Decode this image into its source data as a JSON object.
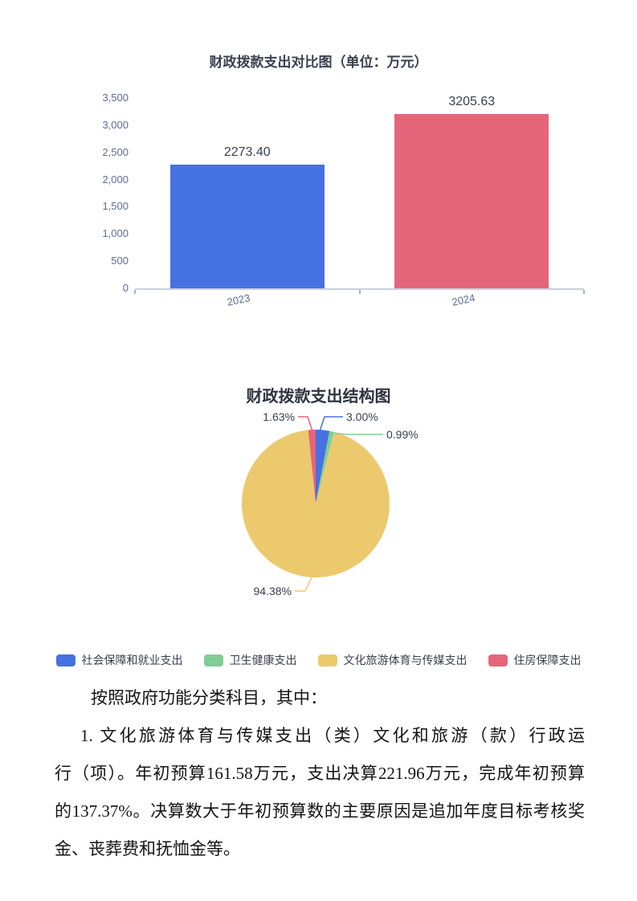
{
  "chart_data": [
    {
      "type": "bar",
      "title": "财政拨款支出对比图（单位：万元）",
      "categories": [
        "2023",
        "2024"
      ],
      "values": [
        2273.4,
        3205.63
      ],
      "value_labels": [
        "2273.40",
        "3205.63"
      ],
      "bar_colors": [
        "#4671e1",
        "#e5667a"
      ],
      "ylabel": "",
      "xlabel": "",
      "ylim": [
        0,
        3500
      ],
      "ytick_step": 500,
      "yticks": [
        "3,500",
        "3,000",
        "2,500",
        "2,000",
        "1,500",
        "1,000",
        "500",
        "0"
      ],
      "grid": false,
      "legend_position": "none"
    },
    {
      "type": "pie",
      "title": "财政拨款支出结构图",
      "slices": [
        {
          "label": "社会保障和就业支出",
          "value": 3.0,
          "pct_label": "3.00%",
          "color": "#4671e1"
        },
        {
          "label": "卫生健康支出",
          "value": 0.99,
          "pct_label": "0.99%",
          "color": "#7fce96"
        },
        {
          "label": "文化旅游体育与传媒支出",
          "value": 94.38,
          "pct_label": "94.38%",
          "color": "#ecc96d"
        },
        {
          "label": "住房保障支出",
          "value": 1.63,
          "pct_label": "1.63%",
          "color": "#e5667a"
        }
      ],
      "legend_position": "bottom"
    }
  ],
  "body_text": {
    "line1": "按照政府功能分类科目，其中：",
    "line2": "1. 文化旅游体育与传媒支出（类）文化和旅游（款）行政运",
    "line3": "行（项）。年初预算161.58万元，支出决算221.96万元，完成年初预算",
    "line4": "的137.37%。决算数大于年初预算数的主要原因是追加年度目标考核奖",
    "line5": "金、丧葬费和抚恤金等。"
  }
}
